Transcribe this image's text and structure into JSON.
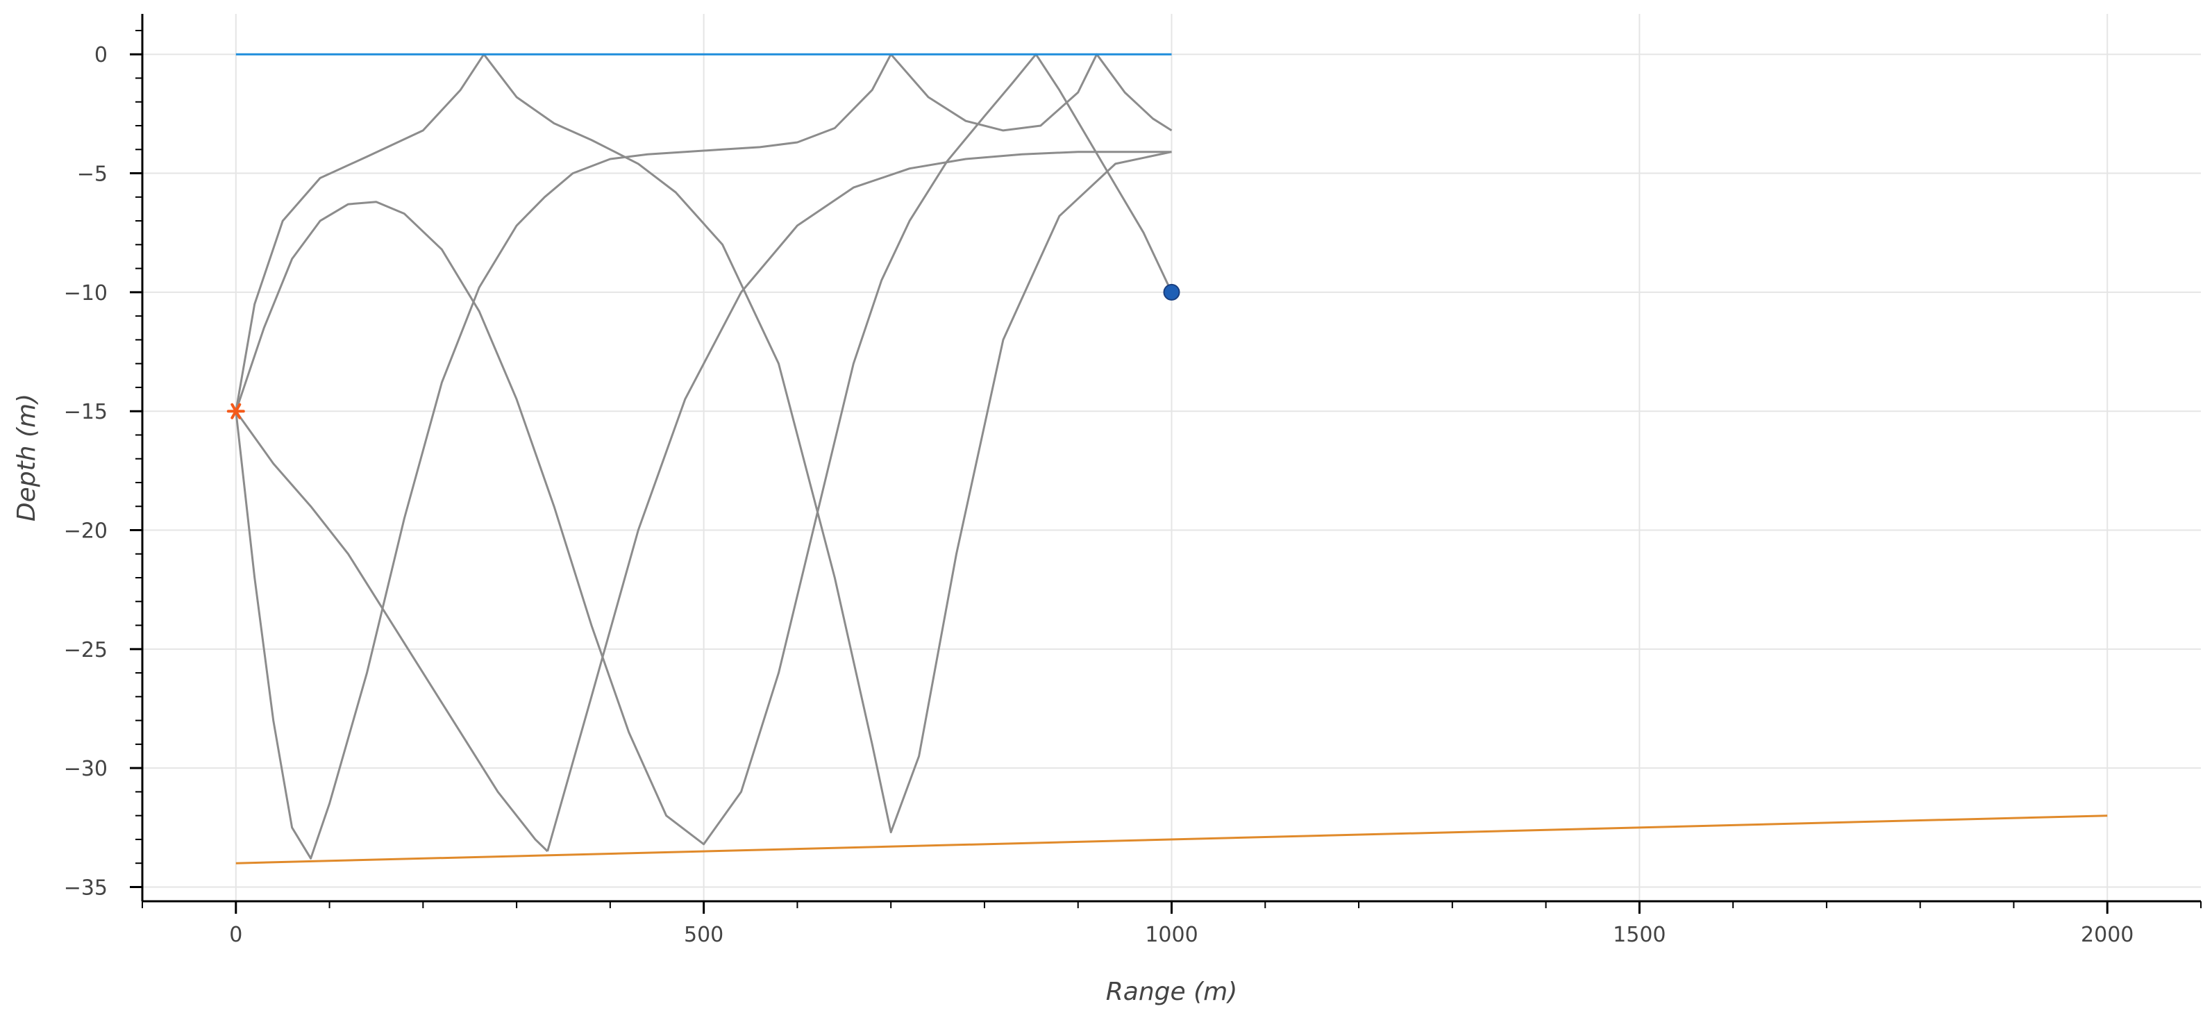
{
  "chart_data": {
    "type": "line",
    "title": "",
    "xlabel": "Range (m)",
    "ylabel": "Depth (m)",
    "xlim": [
      -100,
      2100
    ],
    "ylim": [
      -35.6,
      1.7
    ],
    "xticks": [
      0,
      500,
      1000,
      1500,
      2000
    ],
    "yticks": [
      0,
      -5,
      -10,
      -15,
      -20,
      -25,
      -30,
      -35
    ],
    "grid": true,
    "colors": {
      "surface": "#1f8ddb",
      "bottom": "#e08a2b",
      "rays": "#8c8c8c",
      "source": "#f45a1a",
      "receiver": "#1f5fb5"
    },
    "surface": {
      "x": [
        0,
        1000
      ],
      "y": [
        0,
        0
      ]
    },
    "bottom": {
      "x": [
        0,
        2000
      ],
      "y": [
        -34,
        -32
      ]
    },
    "source": {
      "x": 0,
      "y": -15
    },
    "receiver": {
      "x": 1000,
      "y": -10
    },
    "rays": [
      {
        "x": [
          0,
          20,
          50,
          90,
          140,
          200,
          240,
          265,
          300,
          340,
          380,
          400,
          430,
          470,
          520,
          580,
          640,
          680,
          700,
          730,
          770,
          820,
          880,
          940,
          1000
        ],
        "y": [
          -15,
          -10.5,
          -7.0,
          -5.2,
          -4.3,
          -3.2,
          -1.5,
          0,
          -1.8,
          -2.9,
          -3.6,
          -4.0,
          -4.6,
          -5.8,
          -8.0,
          -13.0,
          -22.0,
          -29.0,
          -32.7,
          -29.5,
          -21.0,
          -12.0,
          -6.8,
          -4.6,
          -4.1
        ]
      },
      {
        "x": [
          0,
          30,
          60,
          90,
          120,
          150,
          180,
          220,
          260,
          300,
          340,
          380,
          420,
          460,
          500,
          540,
          580,
          620,
          660,
          690,
          720,
          760,
          800,
          830,
          855,
          880,
          910,
          940,
          970,
          1000
        ],
        "y": [
          -15,
          -11.5,
          -8.6,
          -7.0,
          -6.3,
          -6.2,
          -6.7,
          -8.2,
          -10.8,
          -14.5,
          -19.0,
          -24.0,
          -28.5,
          -32.0,
          -33.2,
          -31.0,
          -26.0,
          -19.5,
          -13.0,
          -9.5,
          -7.0,
          -4.5,
          -2.6,
          -1.2,
          0,
          -1.5,
          -3.5,
          -5.5,
          -7.5,
          -10
        ]
      },
      {
        "x": [
          0,
          20,
          40,
          60,
          80,
          100,
          140,
          180,
          220,
          260,
          300,
          330,
          360,
          400,
          440,
          480,
          520,
          560,
          600,
          640,
          680,
          700
        ],
        "y": [
          -15,
          -22,
          -28,
          -32.5,
          -33.8,
          -31.5,
          -26.0,
          -19.5,
          -13.8,
          -9.8,
          -7.2,
          -6.0,
          -5.0,
          -4.4,
          -4.2,
          -4.1,
          -4.0,
          -3.9,
          -3.7,
          -3.1,
          -1.5,
          0
        ]
      },
      {
        "x": [
          700,
          740,
          780,
          820,
          860,
          900,
          920,
          950,
          980,
          1000
        ],
        "y": [
          0,
          -1.8,
          -2.8,
          -3.2,
          -3.0,
          -1.6,
          0,
          -1.6,
          -2.7,
          -3.2
        ]
      },
      {
        "x": [
          0,
          40,
          80,
          120,
          160,
          200,
          240,
          280,
          320,
          333
        ],
        "y": [
          -15,
          -17.2,
          -19.0,
          -21.0,
          -23.5,
          -26.0,
          -28.5,
          -31.0,
          -33.0,
          -33.5
        ]
      },
      {
        "x": [
          333,
          380,
          430,
          480,
          540,
          600,
          660,
          720,
          780,
          840,
          900,
          960,
          1000
        ],
        "y": [
          -33.5,
          -27.0,
          -20.0,
          -14.5,
          -10.0,
          -7.2,
          -5.6,
          -4.8,
          -4.4,
          -4.2,
          -4.1,
          -4.1,
          -4.1
        ]
      }
    ]
  }
}
